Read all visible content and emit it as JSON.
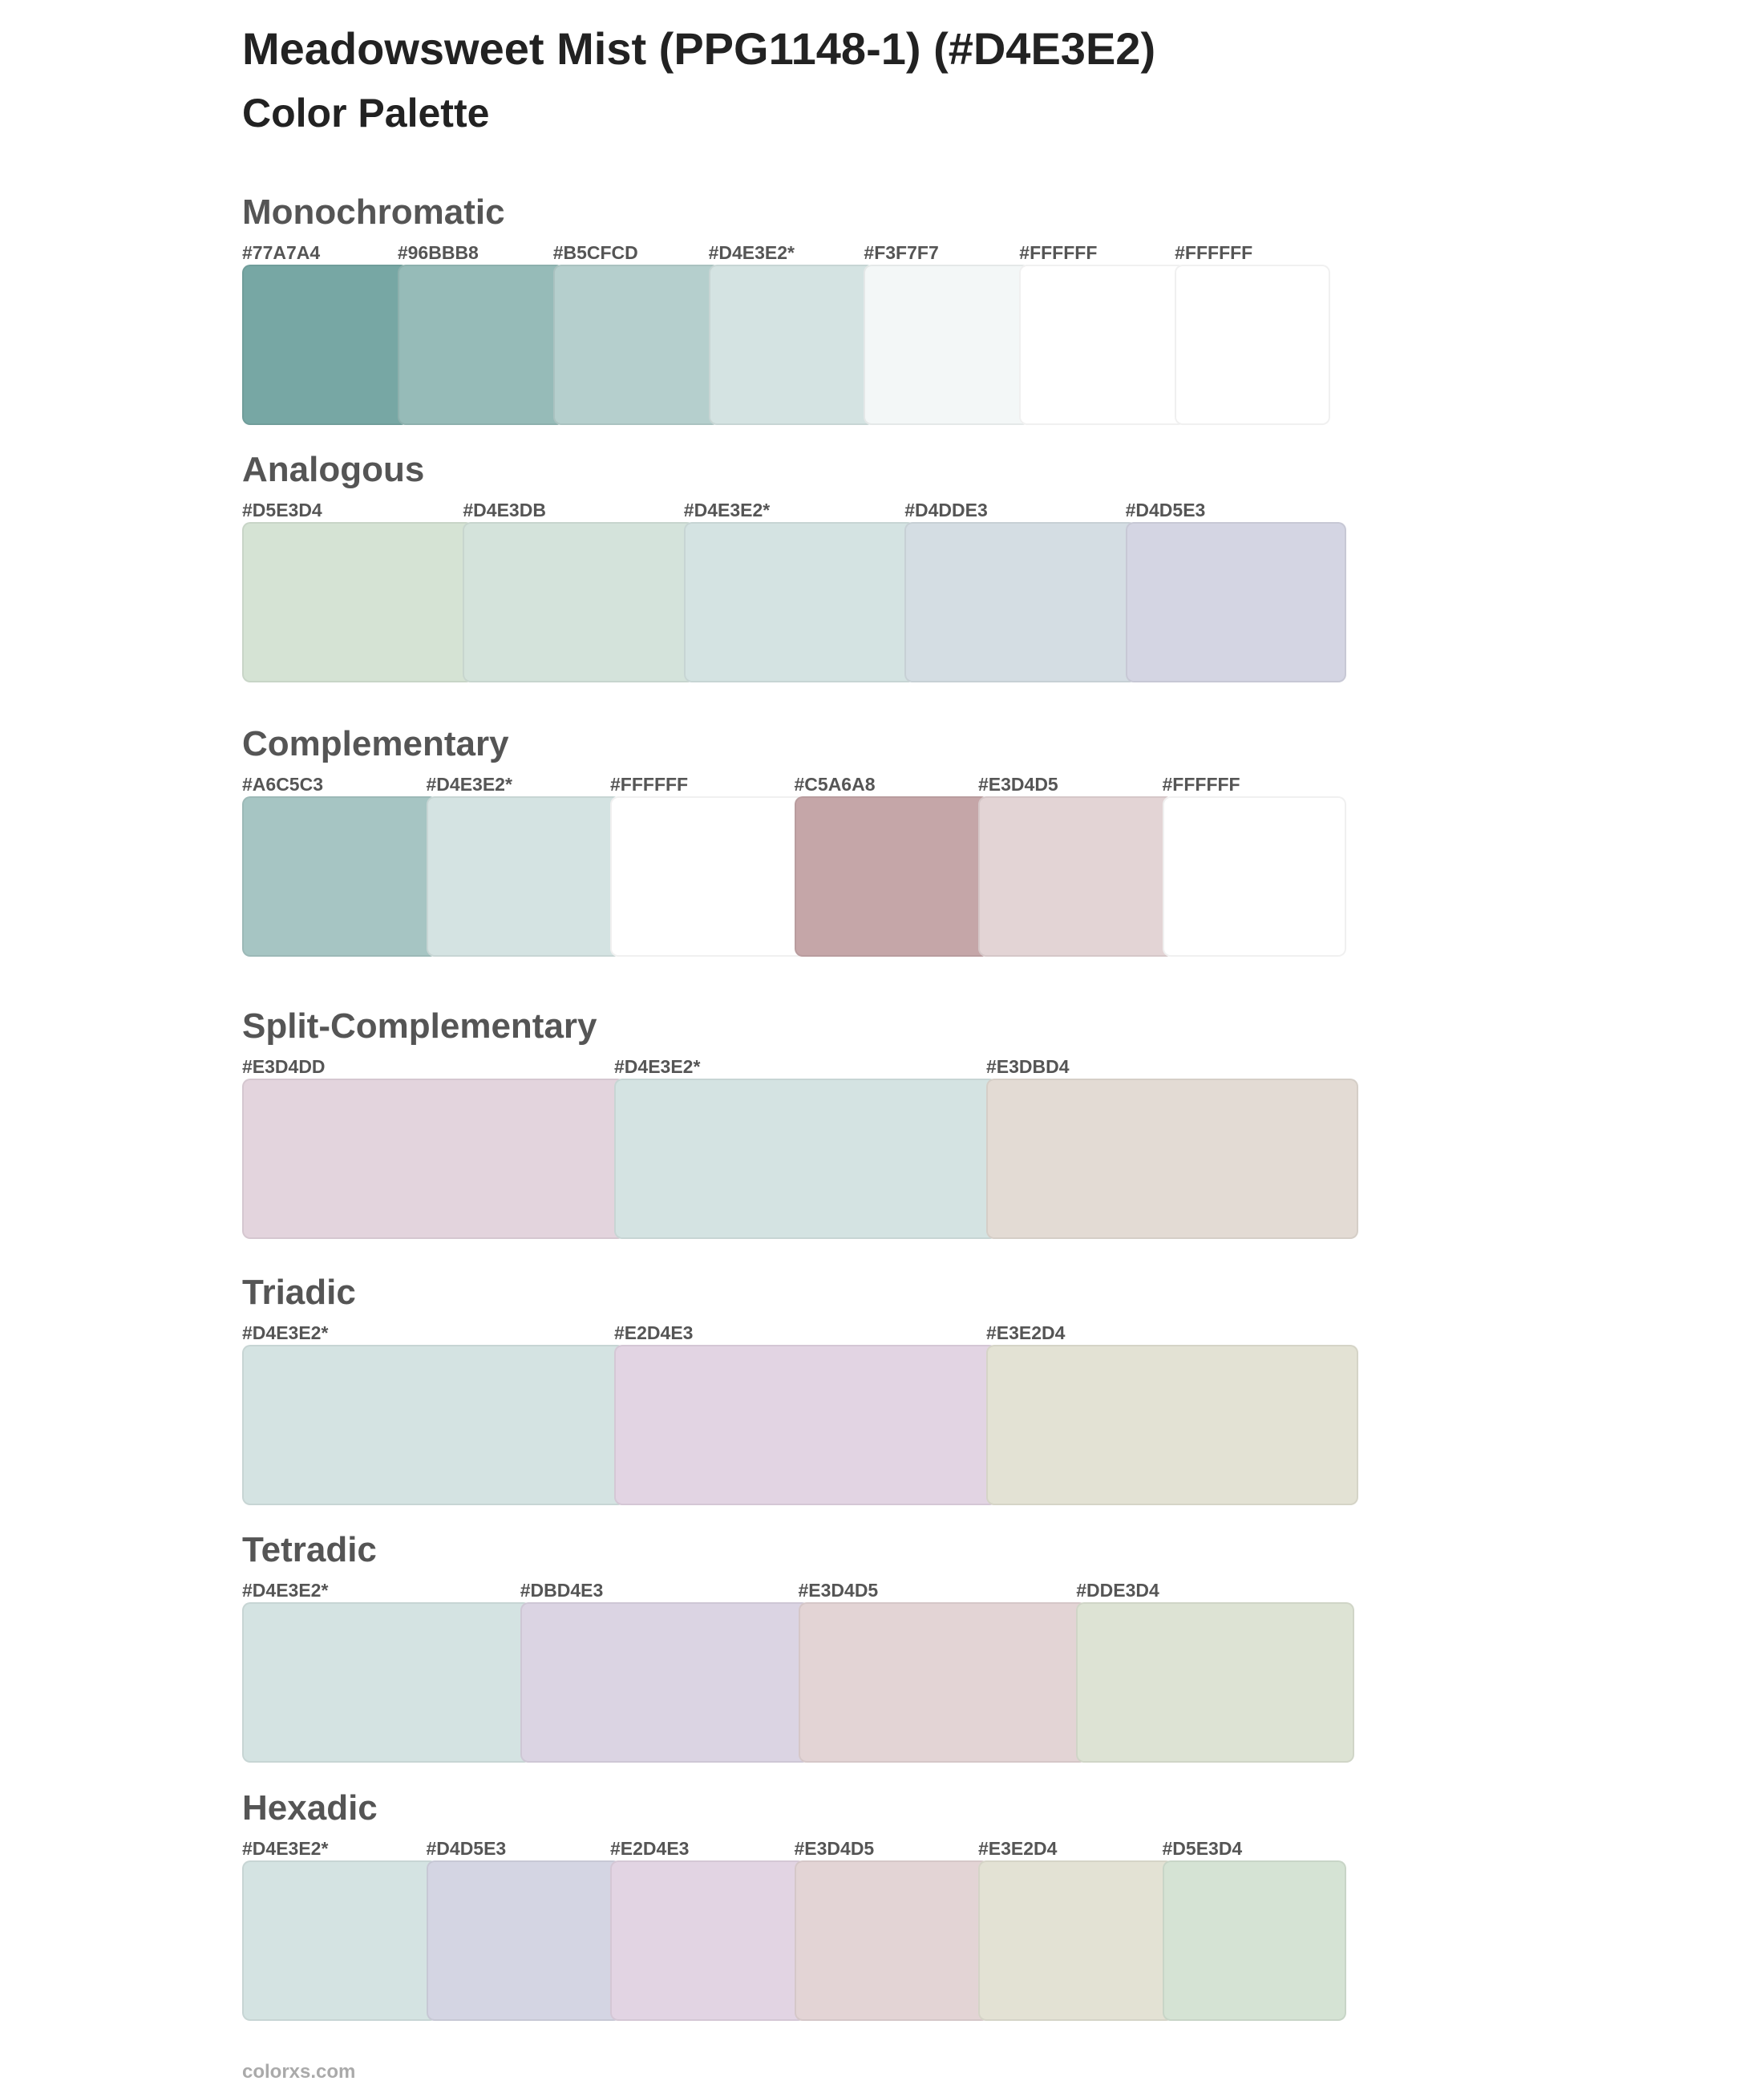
{
  "header": {
    "title": "Meadowsweet Mist (PPG1148-1) (#D4E3E2)",
    "subtitle": "Color Palette"
  },
  "sections": [
    {
      "name": "Monochromatic",
      "swatches": [
        {
          "label": "#77A7A4",
          "color": "#77A7A4"
        },
        {
          "label": "#96BBB8",
          "color": "#96BBB8"
        },
        {
          "label": "#B5CFCD",
          "color": "#B5CFCD"
        },
        {
          "label": "#D4E3E2*",
          "color": "#D4E3E2"
        },
        {
          "label": "#F3F7F7",
          "color": "#F3F7F7"
        },
        {
          "label": "#FFFFFF",
          "color": "#FFFFFF"
        },
        {
          "label": "#FFFFFF",
          "color": "#FFFFFF"
        }
      ]
    },
    {
      "name": "Analogous",
      "swatches": [
        {
          "label": "#D5E3D4",
          "color": "#D5E3D4"
        },
        {
          "label": "#D4E3DB",
          "color": "#D4E3DB"
        },
        {
          "label": "#D4E3E2*",
          "color": "#D4E3E2"
        },
        {
          "label": "#D4DDE3",
          "color": "#D4DDE3"
        },
        {
          "label": "#D4D5E3",
          "color": "#D4D5E3"
        }
      ]
    },
    {
      "name": "Complementary",
      "swatches": [
        {
          "label": "#A6C5C3",
          "color": "#A6C5C3"
        },
        {
          "label": "#D4E3E2*",
          "color": "#D4E3E2"
        },
        {
          "label": "#FFFFFF",
          "color": "#FFFFFF"
        },
        {
          "label": "#C5A6A8",
          "color": "#C5A6A8"
        },
        {
          "label": "#E3D4D5",
          "color": "#E3D4D5"
        },
        {
          "label": "#FFFFFF",
          "color": "#FFFFFF"
        }
      ]
    },
    {
      "name": "Split-Complementary",
      "swatches": [
        {
          "label": "#E3D4DD",
          "color": "#E3D4DD"
        },
        {
          "label": "#D4E3E2*",
          "color": "#D4E3E2"
        },
        {
          "label": "#E3DBD4",
          "color": "#E3DBD4"
        }
      ]
    },
    {
      "name": "Triadic",
      "swatches": [
        {
          "label": "#D4E3E2*",
          "color": "#D4E3E2"
        },
        {
          "label": "#E2D4E3",
          "color": "#E2D4E3"
        },
        {
          "label": "#E3E2D4",
          "color": "#E3E2D4"
        }
      ]
    },
    {
      "name": "Tetradic",
      "swatches": [
        {
          "label": "#D4E3E2*",
          "color": "#D4E3E2"
        },
        {
          "label": "#DBD4E3",
          "color": "#DBD4E3"
        },
        {
          "label": "#E3D4D5",
          "color": "#E3D4D5"
        },
        {
          "label": "#DDE3D4",
          "color": "#DDE3D4"
        }
      ]
    },
    {
      "name": "Hexadic",
      "swatches": [
        {
          "label": "#D4E3E2*",
          "color": "#D4E3E2"
        },
        {
          "label": "#D4D5E3",
          "color": "#D4D5E3"
        },
        {
          "label": "#E2D4E3",
          "color": "#E2D4E3"
        },
        {
          "label": "#E3D4D5",
          "color": "#E3D4D5"
        },
        {
          "label": "#E3E2D4",
          "color": "#E3E2D4"
        },
        {
          "label": "#D5E3D4",
          "color": "#D5E3D4"
        }
      ]
    }
  ],
  "footer": "colorxs.com"
}
